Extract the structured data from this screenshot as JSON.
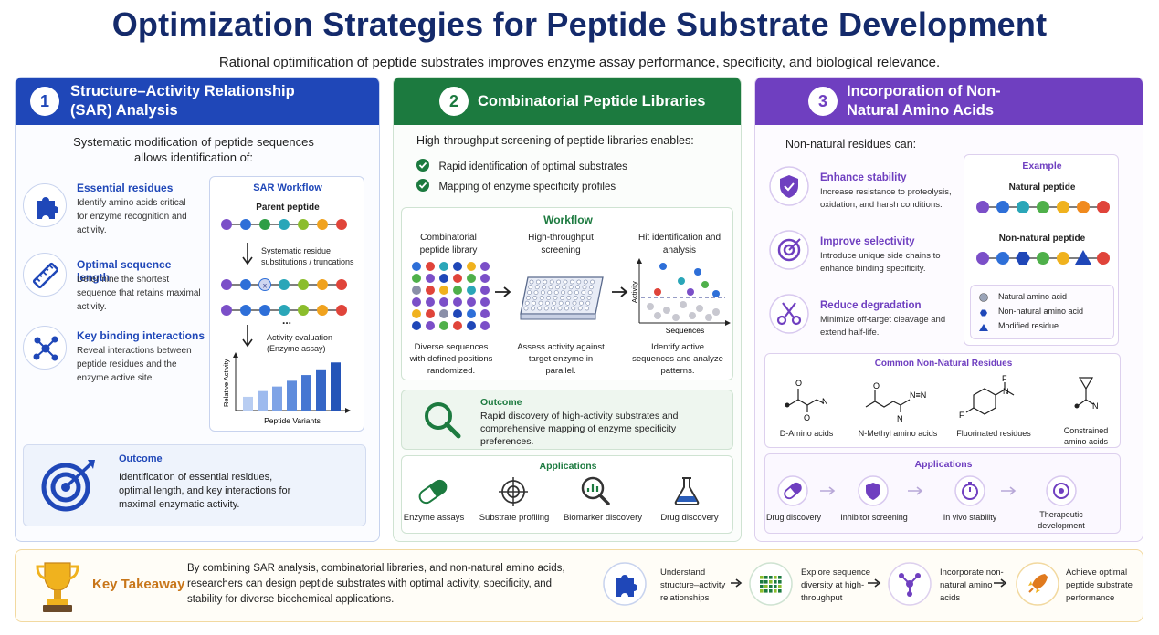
{
  "header": {
    "title": "Optimization Strategies for Peptide Substrate Development",
    "subtitle": "Rational optimification of peptide substrates improves enzyme assay performance, specificity, and biological relevance."
  },
  "colors": {
    "blue": "#1f47b8",
    "green": "#1c7a3f",
    "purple": "#6f3fc0",
    "gold": "#e08a1e",
    "navy": "#142a6b"
  },
  "panel1": {
    "number": "1",
    "title": "Structure–Activity Relationship (SAR) Analysis",
    "intro": "Systematic modification of peptide sequences allows identification of:",
    "items": [
      {
        "icon": "puzzle-icon",
        "title": "Essential residues",
        "desc": "Identify amino acids critical for enzyme recognition and activity."
      },
      {
        "icon": "ruler-icon",
        "title": "Optimal sequence length",
        "desc": "Determine the shortest sequence that retains maximal activity."
      },
      {
        "icon": "network-icon",
        "title": "Key binding interactions",
        "desc": "Reveal interactions between peptide residues and the enzyme active site."
      }
    ],
    "workflow": {
      "title": "SAR Workflow",
      "parent_label": "Parent peptide",
      "substitution_label": "Systematic residue substitutions / truncations",
      "ellipsis": "...",
      "evaluation_label": "Activity evaluation (Enzyme assay)",
      "ylabel": "Relative Activity",
      "xlabel": "Peptide Variants",
      "bar_values": [
        1.2,
        1.7,
        2.1,
        2.6,
        3.1,
        3.6,
        4.2
      ]
    },
    "outcome": {
      "title": "Outcome",
      "text": "Identification of essential residues, optimal length, and key interactions for maximal enzymatic activity."
    }
  },
  "panel2": {
    "number": "2",
    "title": "Combinatorial Peptide Libraries",
    "intro": "High-throughput screening of peptide libraries enables:",
    "checks": [
      "Rapid identification of optimal substrates",
      "Mapping of enzyme specificity profiles"
    ],
    "workflow": {
      "title": "Workflow",
      "steps": [
        {
          "title": "Combinatorial peptide library",
          "desc": "Diverse sequences with defined positions randomized."
        },
        {
          "title": "High-throughput screening",
          "desc": "Assess activity against target enzyme in parallel."
        },
        {
          "title": "Hit identification and analysis",
          "desc": "Identify active sequences and analyze patterns."
        }
      ],
      "ylabel": "Activity",
      "xlabel": "Sequences"
    },
    "outcome": {
      "title": "Outcome",
      "text": "Rapid discovery of high-activity substrates and comprehensive mapping of enzyme specificity preferences."
    },
    "applications": {
      "title": "Applications",
      "items": [
        {
          "icon": "capsule-icon",
          "label": "Enzyme assays"
        },
        {
          "icon": "target-icon",
          "label": "Substrate profiling"
        },
        {
          "icon": "magnifier-chart-icon",
          "label": "Biomarker discovery"
        },
        {
          "icon": "flask-icon",
          "label": "Drug discovery"
        }
      ]
    }
  },
  "panel3": {
    "number": "3",
    "title": "Incorporation of Non-Natural Amino Acids",
    "intro": "Non-natural residues can:",
    "items": [
      {
        "icon": "shield-icon",
        "title": "Enhance stability",
        "desc": "Increase resistance to proteolysis, oxidation, and harsh conditions."
      },
      {
        "icon": "target-icon",
        "title": "Improve selectivity",
        "desc": "Introduce unique side chains to enhance binding specificity."
      },
      {
        "icon": "scissors-icon",
        "title": "Reduce degradation",
        "desc": "Minimize off-target cleavage and extend half-life."
      }
    ],
    "example": {
      "title": "Example",
      "natural_label": "Natural peptide",
      "nonnatural_label": "Non-natural peptide",
      "legend": [
        "Natural amino acid",
        "Non-natural amino acid",
        "Modified residue"
      ]
    },
    "residues": {
      "title": "Common Non-Natural Residues",
      "items": [
        "D-Amino acids",
        "N-Methyl amino acids",
        "Fluorinated residues",
        "Constrained amino acids"
      ]
    },
    "applications": {
      "title": "Applications",
      "items": [
        {
          "icon": "capsule-icon",
          "label": "Drug discovery"
        },
        {
          "icon": "shield-icon",
          "label": "Inhibitor screening"
        },
        {
          "icon": "stopwatch-icon",
          "label": "In vivo stability"
        },
        {
          "icon": "target-icon",
          "label": "Therapeutic development"
        }
      ]
    }
  },
  "takeaway": {
    "title": "Key Takeaway",
    "text": "By combining SAR analysis, combinatorial libraries, and non-natural amino acids, researchers can design peptide substrates with optimal activity, specificity, and stability for diverse biochemical applications.",
    "steps": [
      {
        "icon": "puzzle-icon",
        "label": "Understand structure–activity relationships"
      },
      {
        "icon": "grid-icon",
        "label": "Explore sequence diversity at high-throughput"
      },
      {
        "icon": "network-icon",
        "label": "Incorporate non-natural amino acids"
      },
      {
        "icon": "rocket-icon",
        "label": "Achieve optimal peptide substrate performance"
      }
    ]
  }
}
